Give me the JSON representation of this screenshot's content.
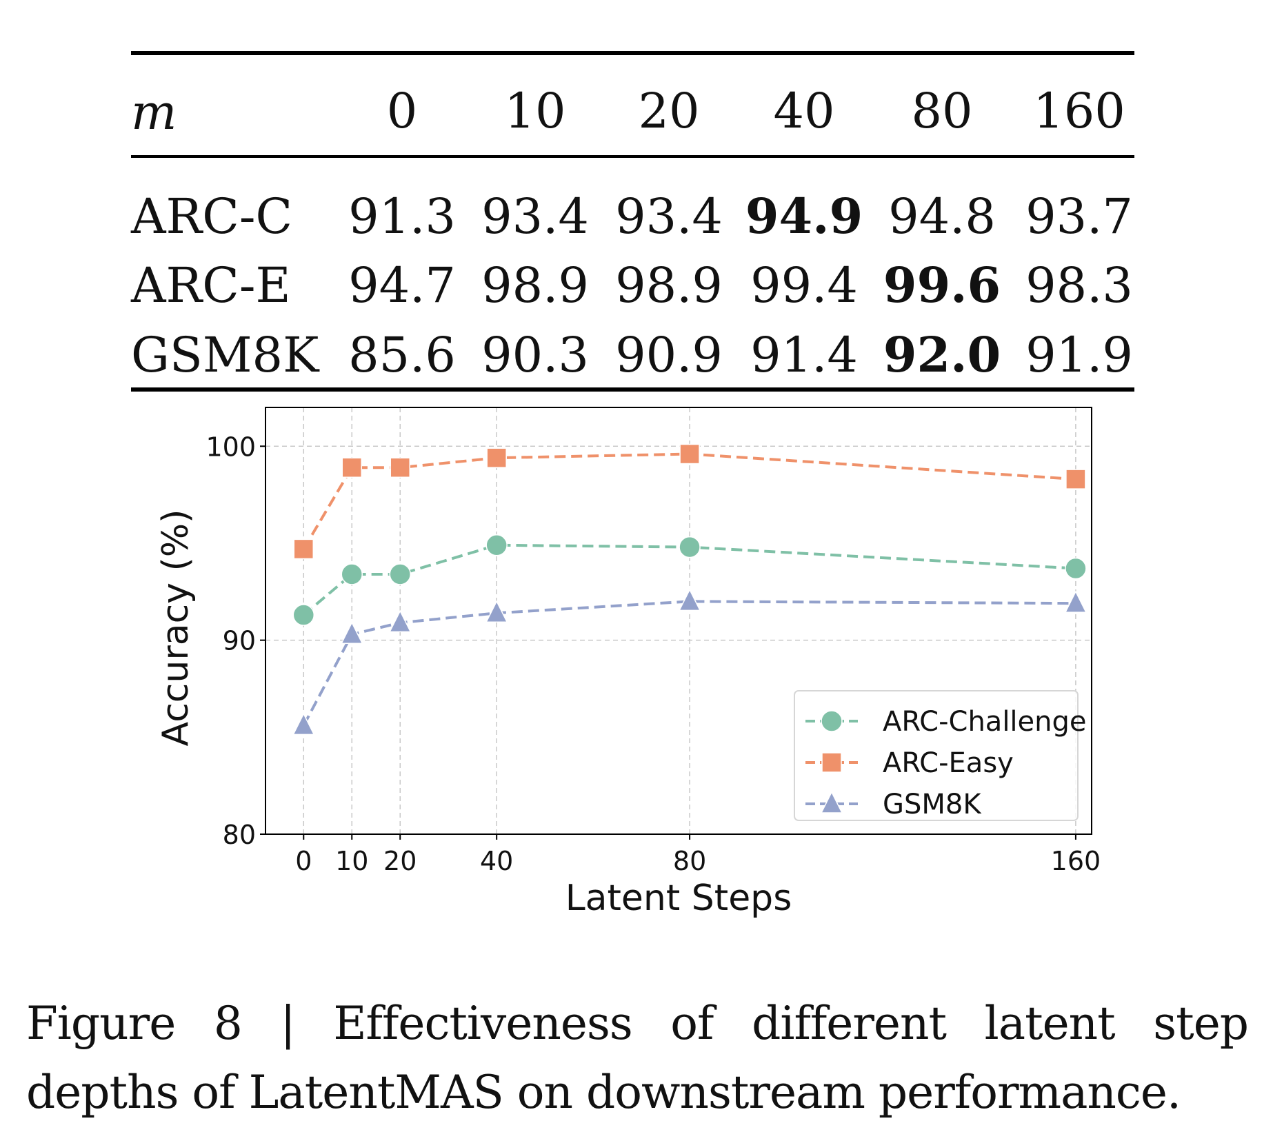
{
  "table": {
    "header": {
      "label": "m",
      "columns": [
        "0",
        "10",
        "20",
        "40",
        "80",
        "160"
      ]
    },
    "rows": [
      {
        "label": "ARC-C",
        "values": [
          "91.3",
          "93.4",
          "93.4",
          "94.9",
          "94.8",
          "93.7"
        ],
        "best_index": 3
      },
      {
        "label": "ARC-E",
        "values": [
          "94.7",
          "98.9",
          "98.9",
          "99.4",
          "99.6",
          "98.3"
        ],
        "best_index": 4
      },
      {
        "label": "GSM8K",
        "values": [
          "85.6",
          "90.3",
          "90.9",
          "91.4",
          "92.0",
          "91.9"
        ],
        "best_index": 4
      }
    ]
  },
  "chart_data": {
    "type": "line",
    "title": "",
    "xlabel": "Latent Steps",
    "ylabel": "Accuracy (%)",
    "x": [
      0,
      10,
      20,
      40,
      80,
      160
    ],
    "x_tick_labels": [
      "0",
      "10",
      "20",
      "40",
      "80",
      "160"
    ],
    "y_ticks": [
      80,
      90,
      100
    ],
    "y_tick_labels": [
      "80",
      "90",
      "100"
    ],
    "xlim": [
      -7.9,
      163.3
    ],
    "ylim": [
      80,
      102.0
    ],
    "grid": true,
    "grid_style": "dashed",
    "line_style": "dashed",
    "legend_position": "lower-right",
    "series": [
      {
        "name": "ARC-Challenge",
        "marker": "circle",
        "color": "#7fc0a6",
        "values": [
          91.3,
          93.4,
          93.4,
          94.9,
          94.8,
          93.7
        ]
      },
      {
        "name": "ARC-Easy",
        "marker": "square",
        "color": "#ef916a",
        "values": [
          94.7,
          98.9,
          98.9,
          99.4,
          99.6,
          98.3
        ]
      },
      {
        "name": "GSM8K",
        "marker": "triangle",
        "color": "#93a1cb",
        "values": [
          85.6,
          90.3,
          90.9,
          91.4,
          92.0,
          91.9
        ]
      }
    ]
  },
  "caption": {
    "line1": "Figure 8 | Effectiveness of different latent step",
    "line2": "depths of LatentMAS on downstream performance."
  }
}
